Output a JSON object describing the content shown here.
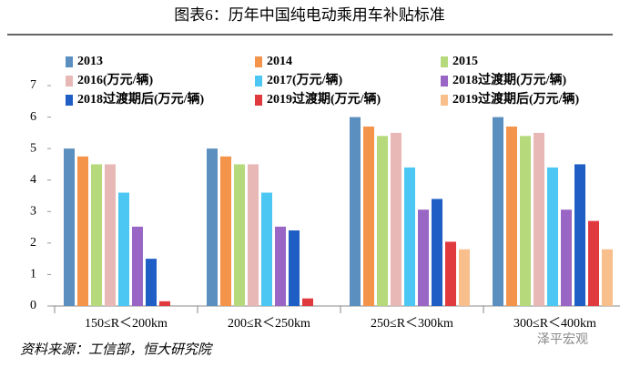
{
  "chart_data": {
    "type": "bar",
    "title": "图表6：历年中国纯电动乘用车补贴标准",
    "categories": [
      "150≤R＜200km",
      "200≤R＜250km",
      "250≤R＜300km",
      "300≤R＜400km"
    ],
    "series": [
      {
        "name": "2013",
        "color": "#5a8fc0",
        "values": [
          5,
          5,
          6,
          6
        ]
      },
      {
        "name": "2014",
        "color": "#f4934a",
        "values": [
          4.75,
          4.75,
          5.7,
          5.7
        ]
      },
      {
        "name": "2015",
        "color": "#b6d97c",
        "values": [
          4.5,
          4.5,
          5.4,
          5.4
        ]
      },
      {
        "name": "2016(万元/辆)",
        "color": "#e8b8b6",
        "values": [
          4.5,
          4.5,
          5.5,
          5.5
        ]
      },
      {
        "name": "2017(万元/辆)",
        "color": "#4cc6f2",
        "values": [
          3.6,
          3.6,
          4.4,
          4.4
        ]
      },
      {
        "name": "2018过渡期(万元/辆)",
        "color": "#9a66c6",
        "values": [
          2.52,
          2.52,
          3.06,
          3.06
        ]
      },
      {
        "name": "2018过渡期后(万元/辆)",
        "color": "#1f5ec4",
        "values": [
          1.5,
          2.4,
          3.4,
          4.5
        ]
      },
      {
        "name": "2019过渡期(万元/辆)",
        "color": "#e0393e",
        "values": [
          0.15,
          0.24,
          2.04,
          2.7
        ]
      },
      {
        "name": "2019过渡期后(万元/辆)",
        "color": "#f8bf8c",
        "values": [
          0,
          0,
          1.8,
          1.8
        ]
      }
    ],
    "ylim": [
      0,
      7
    ],
    "yticks": [
      0,
      1,
      2,
      3,
      4,
      5,
      6,
      7
    ],
    "source": "资料来源：工信部，恒大研究院",
    "watermark": "泽平宏观"
  }
}
